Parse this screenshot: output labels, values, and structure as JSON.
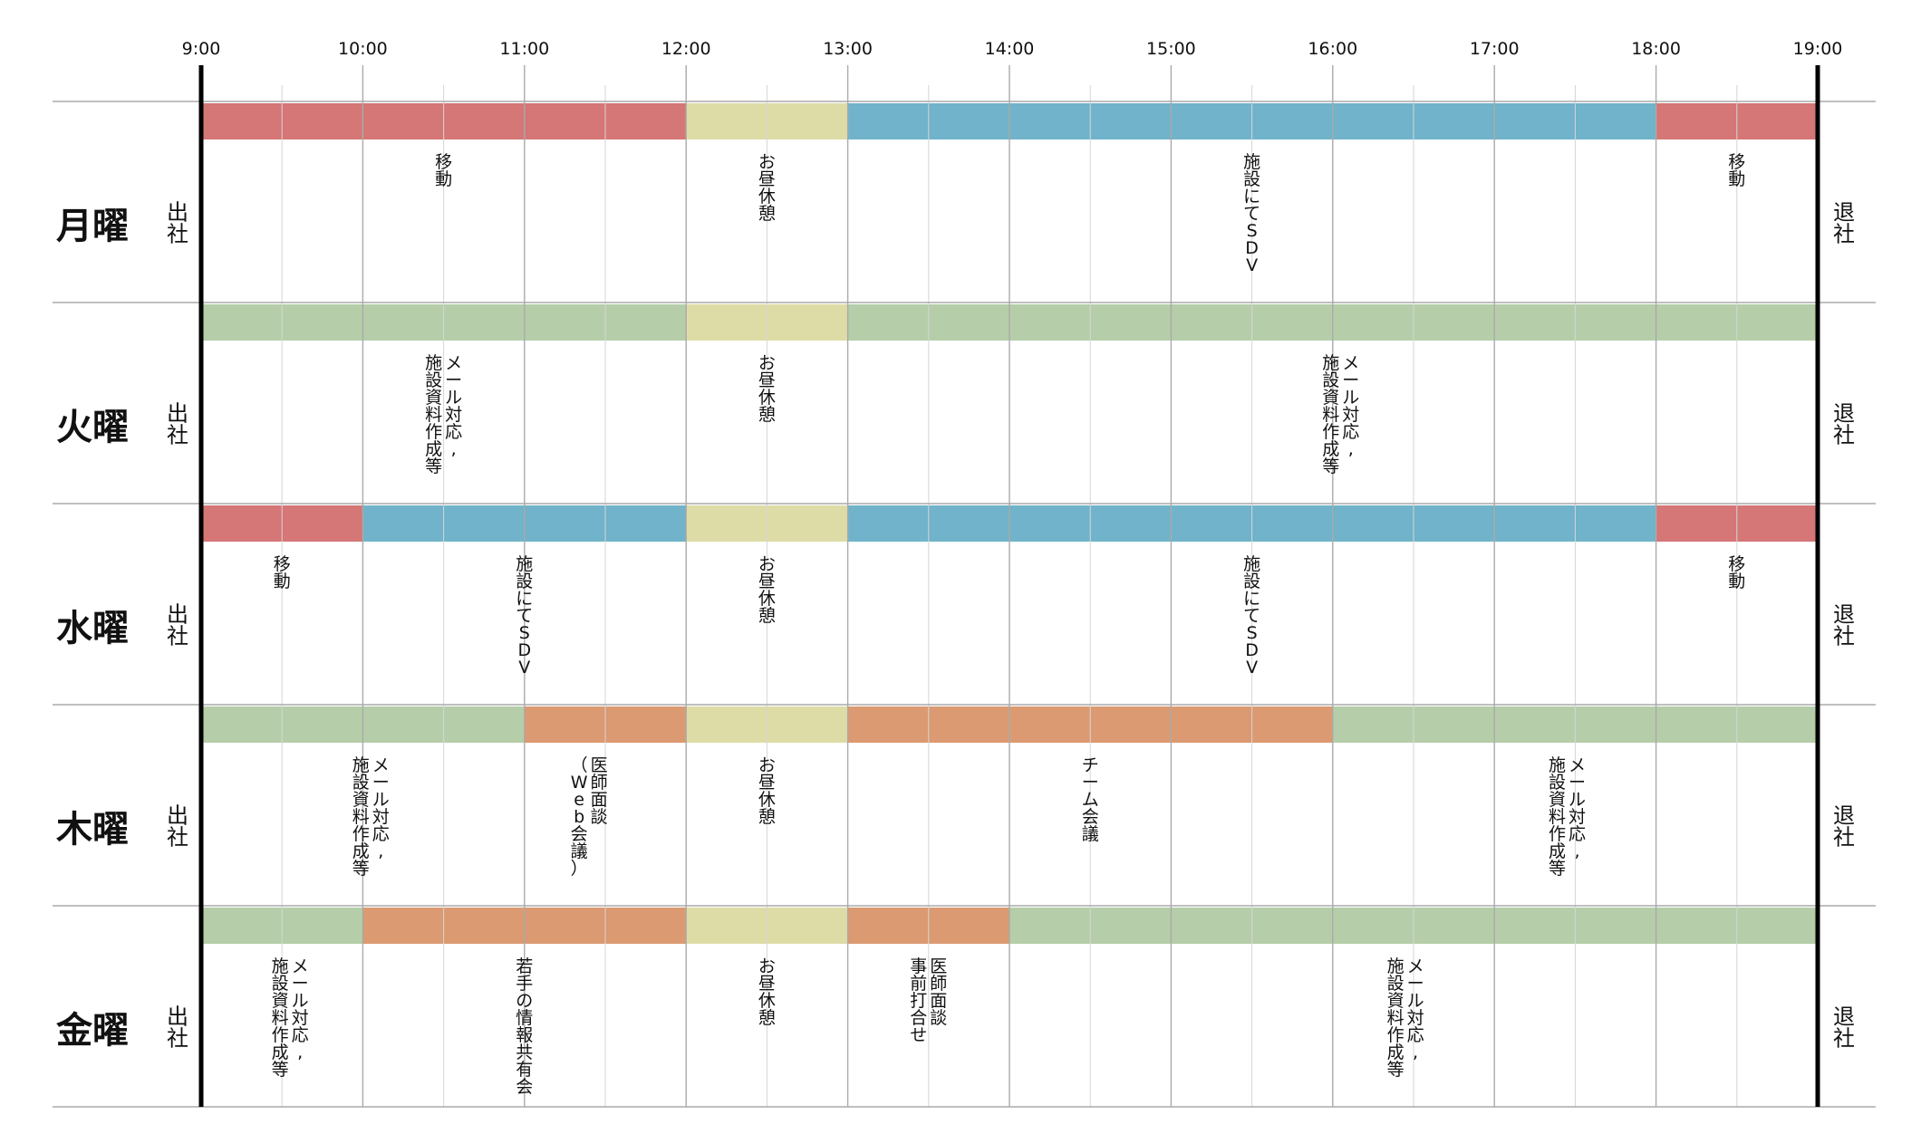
{
  "timeline": {
    "hours": [
      "9:00",
      "10:00",
      "11:00",
      "12:00",
      "13:00",
      "14:00",
      "15:00",
      "16:00",
      "17:00",
      "18:00",
      "19:00"
    ],
    "start_hour": 9,
    "end_hour": 19,
    "start_label": "出社",
    "end_label": "退社",
    "colors": {
      "travel": "#D57677",
      "sdv": "#70B3CA",
      "lunch": "#DEDCA6",
      "office": "#B5CEA9",
      "meeting": "#DB9A71",
      "grid_major": "#aaaaaa",
      "grid_minor": "#d6d6d6",
      "axis": "#000000"
    },
    "days": [
      {
        "label": "月曜",
        "segments": [
          {
            "start": 9,
            "end": 12,
            "kind": "travel",
            "label": "移動",
            "label_at": 10.5
          },
          {
            "start": 12,
            "end": 13,
            "kind": "lunch",
            "label": "お昼休憩",
            "label_at": 12.5
          },
          {
            "start": 13,
            "end": 18,
            "kind": "sdv",
            "label": "施設にてSDV",
            "label_at": 15.5
          },
          {
            "start": 18,
            "end": 19,
            "kind": "travel",
            "label": "移動",
            "label_at": 18.5
          }
        ]
      },
      {
        "label": "火曜",
        "segments": [
          {
            "start": 9,
            "end": 12,
            "kind": "office",
            "label": "メール対応,|施設資料作成等",
            "label_at": 10.5
          },
          {
            "start": 12,
            "end": 13,
            "kind": "lunch",
            "label": "お昼休憩",
            "label_at": 12.5
          },
          {
            "start": 13,
            "end": 19,
            "kind": "office",
            "label": "メール対応,|施設資料作成等",
            "label_at": 16.05
          }
        ]
      },
      {
        "label": "水曜",
        "segments": [
          {
            "start": 9,
            "end": 10,
            "kind": "travel",
            "label": "移動",
            "label_at": 9.5
          },
          {
            "start": 10,
            "end": 12,
            "kind": "sdv",
            "label": "施設にてSDV",
            "label_at": 11.0
          },
          {
            "start": 12,
            "end": 13,
            "kind": "lunch",
            "label": "お昼休憩",
            "label_at": 12.5
          },
          {
            "start": 13,
            "end": 18,
            "kind": "sdv",
            "label": "施設にてSDV",
            "label_at": 15.5
          },
          {
            "start": 18,
            "end": 19,
            "kind": "travel",
            "label": "移動",
            "label_at": 18.5
          }
        ]
      },
      {
        "label": "木曜",
        "segments": [
          {
            "start": 9,
            "end": 11,
            "kind": "office",
            "label": "メール対応,|施設資料作成等",
            "label_at": 10.05
          },
          {
            "start": 11,
            "end": 12,
            "kind": "meeting",
            "label": "医師面談|（Web会議）",
            "label_at": 11.4
          },
          {
            "start": 12,
            "end": 13,
            "kind": "lunch",
            "label": "お昼休憩",
            "label_at": 12.5
          },
          {
            "start": 13,
            "end": 16,
            "kind": "meeting",
            "label": "チーム会議",
            "label_at": 14.5
          },
          {
            "start": 16,
            "end": 19,
            "kind": "office",
            "label": "メール対応,|施設資料作成等",
            "label_at": 17.45
          }
        ]
      },
      {
        "label": "金曜",
        "segments": [
          {
            "start": 9,
            "end": 10,
            "kind": "office",
            "label": "メール対応,|施設資料作成等",
            "label_at": 9.55
          },
          {
            "start": 10,
            "end": 12,
            "kind": "meeting",
            "label": "若手の情報共有会",
            "label_at": 11.0
          },
          {
            "start": 12,
            "end": 13,
            "kind": "lunch",
            "label": "お昼休憩",
            "label_at": 12.5
          },
          {
            "start": 13,
            "end": 14,
            "kind": "meeting",
            "label": "医師面談|事前打合せ",
            "label_at": 13.5
          },
          {
            "start": 14,
            "end": 19,
            "kind": "office",
            "label": "メール対応,|施設資料作成等",
            "label_at": 16.45
          }
        ]
      }
    ]
  }
}
